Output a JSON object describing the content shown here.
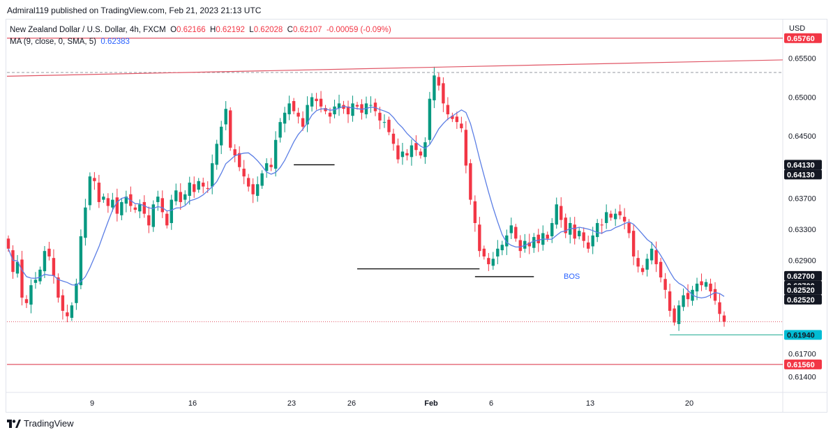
{
  "header": {
    "published": "Admiral119 published on TradingView.com, Feb 21, 2023 21:13 UTC"
  },
  "legend": {
    "symbol": "New Zealand Dollar / U.S. Dollar, 4h, FXCM",
    "o_label": "O",
    "o_value": "0.62166",
    "h_label": "H",
    "h_value": "0.62192",
    "l_label": "L",
    "l_value": "0.62028",
    "c_label": "C",
    "c_value": "0.62107",
    "change": "-0.00059 (-0.09%)",
    "ma_label": "MA (9, close, 0, SMA, 5)",
    "ma_value": "0.62383"
  },
  "footer": {
    "brand": "TradingView"
  },
  "colors": {
    "up": "#089981",
    "down": "#f23645",
    "ma": "#5b7ee5",
    "level_line": "#e05565",
    "axis_text": "#131722",
    "grid": "#f0f3fa"
  },
  "chart_data": {
    "type": "candlestick",
    "currency_label": "USD",
    "y_ticks": [
      "0.65500",
      "0.65000",
      "0.64500",
      "0.63700",
      "0.63300",
      "0.62900",
      "0.61700",
      "0.61400"
    ],
    "x_labels": [
      "9",
      "16",
      "23",
      "26",
      "Feb",
      "6",
      "13",
      "20"
    ],
    "ylim": [
      0.612,
      0.66
    ],
    "price_tags": [
      {
        "text": "0.65760",
        "value": 0.6576,
        "style": "red"
      },
      {
        "text": "0.64130",
        "value": 0.6413,
        "style": "black"
      },
      {
        "text": "0.64130",
        "value": 0.6413,
        "style": "black",
        "offset": 1
      },
      {
        "text": "0.62700",
        "value": 0.627,
        "style": "black"
      },
      {
        "text": "0.62700",
        "value": 0.627,
        "style": "black",
        "offset": 1
      },
      {
        "text": "0.62520",
        "value": 0.6252,
        "style": "black"
      },
      {
        "text": "0.62520",
        "value": 0.6252,
        "style": "black",
        "offset": 1
      },
      {
        "text": "0.61940",
        "value": 0.6194,
        "style": "teal"
      },
      {
        "text": "0.61560",
        "value": 0.6156,
        "style": "red"
      }
    ],
    "annotations": [
      {
        "text": "BOS",
        "type": "label"
      }
    ],
    "levels": {
      "resistance": 0.6576,
      "support": 0.6156,
      "current_price": 0.6211
    },
    "trendline": {
      "from": 0.6527,
      "to": 0.6548
    },
    "bos_lines": [
      0.6413,
      0.6279,
      0.6269
    ],
    "sma_period": 9,
    "closes": [
      0.6305,
      0.6275,
      0.6288,
      0.6242,
      0.6235,
      0.6258,
      0.6265,
      0.6278,
      0.6302,
      0.6295,
      0.627,
      0.6242,
      0.6225,
      0.6218,
      0.6232,
      0.626,
      0.6321,
      0.6358,
      0.6398,
      0.6392,
      0.6365,
      0.6372,
      0.636,
      0.6368,
      0.635,
      0.6365,
      0.6372,
      0.636,
      0.6355,
      0.6362,
      0.635,
      0.6335,
      0.6362,
      0.6372,
      0.6352,
      0.6335,
      0.6368,
      0.638,
      0.6365,
      0.6375,
      0.639,
      0.6378,
      0.6392,
      0.6385,
      0.6382,
      0.6415,
      0.644,
      0.6462,
      0.6485,
      0.6435,
      0.6425,
      0.641,
      0.6398,
      0.6385,
      0.6375,
      0.6388,
      0.6402,
      0.6415,
      0.641,
      0.6445,
      0.6468,
      0.648,
      0.6492,
      0.6482,
      0.6475,
      0.6462,
      0.649,
      0.65,
      0.6495,
      0.6488,
      0.6482,
      0.6475,
      0.6488,
      0.6492,
      0.6485,
      0.6478,
      0.6492,
      0.6488,
      0.648,
      0.6492,
      0.649,
      0.6482,
      0.647,
      0.6468,
      0.6455,
      0.644,
      0.642,
      0.643,
      0.6425,
      0.6438,
      0.6432,
      0.6425,
      0.6442,
      0.6498,
      0.6528,
      0.6515,
      0.6492,
      0.6478,
      0.6472,
      0.6468,
      0.646,
      0.6412,
      0.6368,
      0.6338,
      0.6302,
      0.6295,
      0.6285,
      0.6292,
      0.6305,
      0.631,
      0.6322,
      0.6335,
      0.6318,
      0.6302,
      0.6315,
      0.6308,
      0.632,
      0.6312,
      0.6325,
      0.6318,
      0.6338,
      0.6362,
      0.6342,
      0.6325,
      0.6338,
      0.6318,
      0.6328,
      0.6315,
      0.6305,
      0.6322,
      0.6338,
      0.6335,
      0.6352,
      0.6345,
      0.635,
      0.6348,
      0.634,
      0.6325,
      0.6295,
      0.6282,
      0.6275,
      0.6292,
      0.6305,
      0.6285,
      0.6268,
      0.6252,
      0.6225,
      0.621,
      0.6232,
      0.6245,
      0.624,
      0.6252,
      0.626,
      0.6258,
      0.6262,
      0.625,
      0.6238,
      0.6221,
      0.6211
    ]
  }
}
